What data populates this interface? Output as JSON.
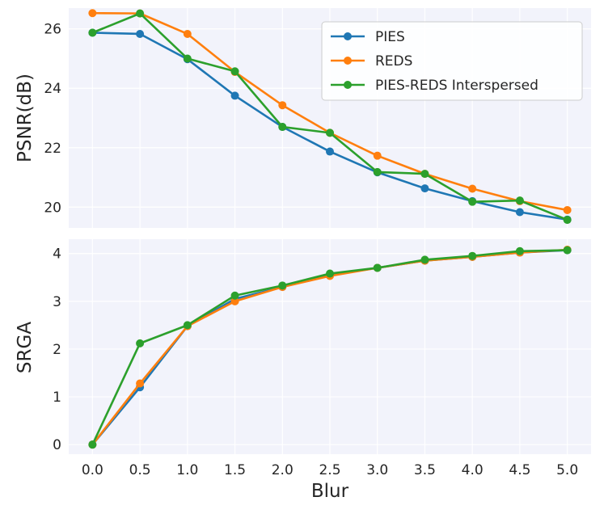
{
  "chart_data": [
    {
      "type": "line",
      "title": "",
      "xlabel": "",
      "ylabel": "PSNR(dB)",
      "x": [
        0.0,
        0.5,
        1.0,
        1.5,
        2.0,
        2.5,
        3.0,
        3.5,
        4.0,
        4.5,
        5.0
      ],
      "xlim": [
        -0.25,
        5.25
      ],
      "ylim": [
        19.3,
        26.7
      ],
      "yticks": [
        20,
        22,
        24,
        26
      ],
      "ytick_labels": [
        "20",
        "22",
        "24",
        "26"
      ],
      "grid": true,
      "legend_position": "top-right",
      "series": [
        {
          "name": "PIES",
          "color": "#1f77b4",
          "values": [
            25.87,
            25.83,
            24.98,
            23.75,
            22.7,
            21.87,
            21.17,
            20.63,
            20.2,
            19.83,
            19.58
          ]
        },
        {
          "name": "REDS",
          "color": "#ff7f0e",
          "values": [
            26.53,
            26.52,
            25.83,
            24.55,
            23.43,
            22.5,
            21.73,
            21.12,
            20.62,
            20.2,
            19.9
          ]
        },
        {
          "name": "PIES-REDS Interspersed",
          "color": "#2ca02c",
          "values": [
            25.87,
            26.52,
            25.0,
            24.57,
            22.7,
            22.5,
            21.18,
            21.12,
            20.18,
            20.22,
            19.57
          ]
        }
      ]
    },
    {
      "type": "line",
      "title": "",
      "xlabel": "Blur",
      "ylabel": "SRGA",
      "x": [
        0.0,
        0.5,
        1.0,
        1.5,
        2.0,
        2.5,
        3.0,
        3.5,
        4.0,
        4.5,
        5.0
      ],
      "xlim": [
        -0.25,
        5.25
      ],
      "ylim": [
        -0.2,
        4.3
      ],
      "xticks": [
        0.0,
        0.5,
        1.0,
        1.5,
        2.0,
        2.5,
        3.0,
        3.5,
        4.0,
        4.5,
        5.0
      ],
      "xtick_labels": [
        "0.0",
        "0.5",
        "1.0",
        "1.5",
        "2.0",
        "2.5",
        "3.0",
        "3.5",
        "4.0",
        "4.5",
        "5.0"
      ],
      "yticks": [
        0,
        1,
        2,
        3,
        4
      ],
      "ytick_labels": [
        "0",
        "1",
        "2",
        "3",
        "4"
      ],
      "grid": true,
      "series": [
        {
          "name": "PIES",
          "color": "#1f77b4",
          "values": [
            0.0,
            1.2,
            2.48,
            3.05,
            3.3,
            3.55,
            3.7,
            3.85,
            3.93,
            4.02,
            4.07
          ]
        },
        {
          "name": "REDS",
          "color": "#ff7f0e",
          "values": [
            0.0,
            1.28,
            2.48,
            3.0,
            3.3,
            3.53,
            3.7,
            3.85,
            3.93,
            4.02,
            4.08
          ]
        },
        {
          "name": "PIES-REDS Interspersed",
          "color": "#2ca02c",
          "values": [
            0.0,
            2.12,
            2.5,
            3.12,
            3.33,
            3.58,
            3.7,
            3.87,
            3.95,
            4.05,
            4.07
          ]
        }
      ]
    }
  ]
}
